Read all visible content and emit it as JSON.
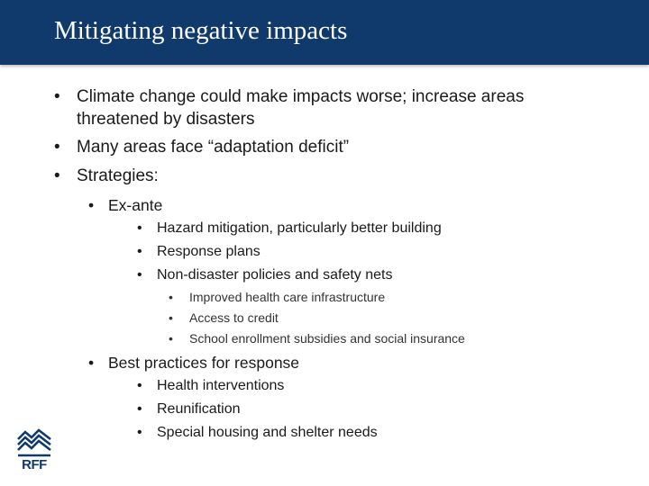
{
  "slide": {
    "title": "Mitigating negative impacts",
    "bullet_char": "•",
    "colors": {
      "title_bar": "#0f3a6b",
      "title_text": "#ffffff",
      "body_text": "#1a1a1a",
      "logo": "#0f3a6b"
    },
    "items": [
      "Climate change could make impacts worse; increase areas",
      "threatened by disasters",
      "Many areas face “adaptation deficit”",
      "Strategies:",
      "Ex-ante",
      "Hazard mitigation, particularly better building",
      "Response plans",
      "Non-disaster policies and safety nets",
      "Improved health care infrastructure",
      "Access to credit",
      "School enrollment subsidies and social insurance",
      "Best practices for response",
      "Health interventions",
      "Reunification",
      "Special housing and shelter needs"
    ]
  },
  "logo": {
    "text": "RFF",
    "icon": "rff-roof-logo-icon"
  }
}
